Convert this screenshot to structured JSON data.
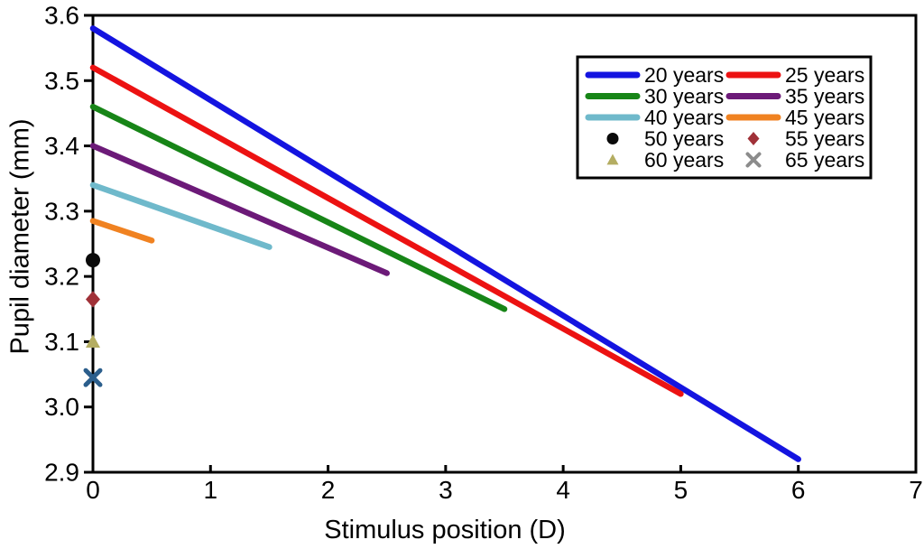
{
  "chart_data": {
    "type": "line",
    "title": "",
    "xlabel": "Stimulus position (D)",
    "ylabel": "Pupil diameter (mm)",
    "xlim": [
      0,
      7
    ],
    "ylim": [
      2.9,
      3.6
    ],
    "x_ticks": [
      "0",
      "1",
      "2",
      "3",
      "4",
      "5",
      "6",
      "7"
    ],
    "y_ticks": [
      "2.9",
      "3.0",
      "3.1",
      "3.2",
      "3.3",
      "3.4",
      "3.5",
      "3.6"
    ],
    "grid": false,
    "legend_position": "top-right",
    "legend_columns": 2,
    "axis_color": "#000000",
    "series": [
      {
        "name": "20 years",
        "kind": "line",
        "color": "#1414E0",
        "x": [
          0,
          6
        ],
        "y": [
          3.58,
          2.92
        ]
      },
      {
        "name": "25 years",
        "kind": "line",
        "color": "#EC1212",
        "x": [
          0,
          5
        ],
        "y": [
          3.52,
          3.02
        ]
      },
      {
        "name": "30 years",
        "kind": "line",
        "color": "#178517",
        "x": [
          0,
          3.5
        ],
        "y": [
          3.46,
          3.15
        ]
      },
      {
        "name": "35 years",
        "kind": "line",
        "color": "#6C1A78",
        "x": [
          0,
          2.5
        ],
        "y": [
          3.4,
          3.205
        ]
      },
      {
        "name": "40 years",
        "kind": "line",
        "color": "#6FB9CB",
        "x": [
          0,
          1.5
        ],
        "y": [
          3.34,
          3.245
        ]
      },
      {
        "name": "45 years",
        "kind": "line",
        "color": "#F08221",
        "x": [
          0,
          0.5
        ],
        "y": [
          3.285,
          3.255
        ]
      },
      {
        "name": "50 years",
        "kind": "marker",
        "marker": "circle",
        "color": "#0A0A0A",
        "x": [
          0
        ],
        "y": [
          3.225
        ]
      },
      {
        "name": "55 years",
        "kind": "marker",
        "marker": "diamond",
        "color": "#A03138",
        "x": [
          0
        ],
        "y": [
          3.165
        ]
      },
      {
        "name": "60 years",
        "kind": "marker",
        "marker": "triangle",
        "color": "#B4AD62",
        "x": [
          0
        ],
        "y": [
          3.1
        ]
      },
      {
        "name": "65 years",
        "kind": "marker",
        "marker": "x",
        "color": "#2B5E8C",
        "legend_color": "#8C8C8C",
        "x": [
          0
        ],
        "y": [
          3.045
        ]
      }
    ]
  }
}
